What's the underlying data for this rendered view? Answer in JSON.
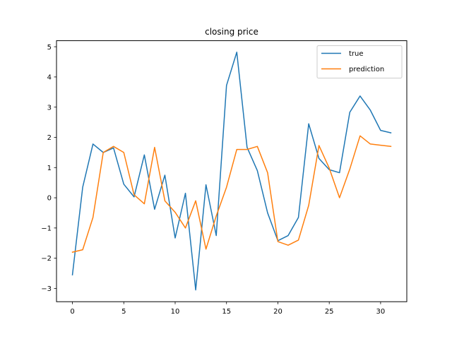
{
  "chart_data": {
    "type": "line",
    "title": "closing price",
    "xlabel": "",
    "ylabel": "",
    "xlim": [
      -1.55,
      32.55
    ],
    "ylim": [
      -3.44,
      5.2
    ],
    "x_ticks": [
      0,
      5,
      10,
      15,
      20,
      25,
      30
    ],
    "y_ticks": [
      -3,
      -2,
      -1,
      0,
      1,
      2,
      3,
      4,
      5
    ],
    "x_tick_labels": [
      "0",
      "5",
      "10",
      "15",
      "20",
      "25",
      "30"
    ],
    "y_tick_labels": [
      "−3",
      "−2",
      "−1",
      "0",
      "1",
      "2",
      "3",
      "4",
      "5"
    ],
    "grid": false,
    "legend_position": "top-right",
    "x": [
      0,
      1,
      2,
      3,
      4,
      5,
      6,
      7,
      8,
      9,
      10,
      11,
      12,
      13,
      14,
      15,
      16,
      17,
      18,
      19,
      20,
      21,
      22,
      23,
      24,
      25,
      26,
      27,
      28,
      29,
      30,
      31
    ],
    "series": [
      {
        "name": "true",
        "color": "#1f77b4",
        "values": [
          -2.55,
          0.35,
          1.78,
          1.5,
          1.65,
          0.45,
          0.03,
          1.42,
          -0.38,
          0.75,
          -1.33,
          0.15,
          -3.05,
          0.43,
          -1.25,
          3.72,
          4.82,
          1.67,
          0.9,
          -0.5,
          -1.42,
          -1.25,
          -0.65,
          2.45,
          1.3,
          0.93,
          0.83,
          2.83,
          3.37,
          2.9,
          2.23,
          2.15
        ]
      },
      {
        "name": "prediction",
        "color": "#ff7f0e",
        "values": [
          -1.8,
          -1.72,
          -0.65,
          1.5,
          1.7,
          1.5,
          0.1,
          -0.2,
          1.67,
          -0.1,
          -0.48,
          -1.0,
          -0.1,
          -1.7,
          -0.6,
          0.35,
          1.6,
          1.6,
          1.7,
          0.83,
          -1.45,
          -1.57,
          -1.4,
          -0.25,
          1.73,
          0.98,
          0.0,
          0.95,
          2.05,
          1.78,
          1.74,
          1.7
        ]
      }
    ]
  }
}
